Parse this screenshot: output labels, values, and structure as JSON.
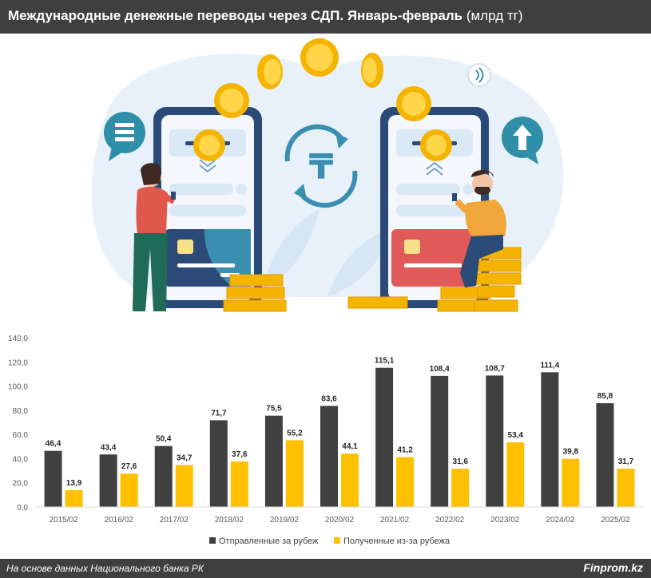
{
  "header": {
    "title_bold": "Международные денежные переводы через СДП. Январь-февраль",
    "title_unit": "(млрд тг)"
  },
  "footer": {
    "source": "На основе данных Национального банка РК",
    "brand": "Finprom.kz"
  },
  "illustration": {
    "tenge_symbol": "₸"
  },
  "colors": {
    "header_bg": "#3f3f3f",
    "sent": "#404040",
    "received": "#ffc000"
  },
  "chart_data": {
    "type": "bar",
    "categories": [
      "2015/02",
      "2016/02",
      "2017/02",
      "2018/02",
      "2019/02",
      "2020/02",
      "2021/02",
      "2022/02",
      "2023/02",
      "2024/02",
      "2025/02"
    ],
    "series": [
      {
        "name": "Отправленные за рубеж",
        "color": "#404040",
        "values": [
          46.4,
          43.4,
          50.4,
          71.7,
          75.5,
          83.6,
          115.1,
          108.4,
          108.7,
          111.4,
          85.8
        ],
        "labels": [
          "46,4",
          "43,4",
          "50,4",
          "71,7",
          "75,5",
          "83,6",
          "115,1",
          "108,4",
          "108,7",
          "111,4",
          "85,8"
        ]
      },
      {
        "name": "Полученные из-за рубежа",
        "color": "#ffc000",
        "values": [
          13.9,
          27.6,
          34.7,
          37.6,
          55.2,
          44.1,
          41.2,
          31.6,
          53.4,
          39.8,
          31.7
        ],
        "labels": [
          "13,9",
          "27,6",
          "34,7",
          "37,6",
          "55,2",
          "44,1",
          "41,2",
          "31,6",
          "53,4",
          "39,8",
          "31,7"
        ]
      }
    ],
    "yticks": [
      "0,0",
      "20,0",
      "40,0",
      "60,0",
      "80,0",
      "100,0",
      "120,0",
      "140,0"
    ],
    "ylim": [
      0,
      140
    ],
    "grid": false,
    "legend": "bottom"
  }
}
